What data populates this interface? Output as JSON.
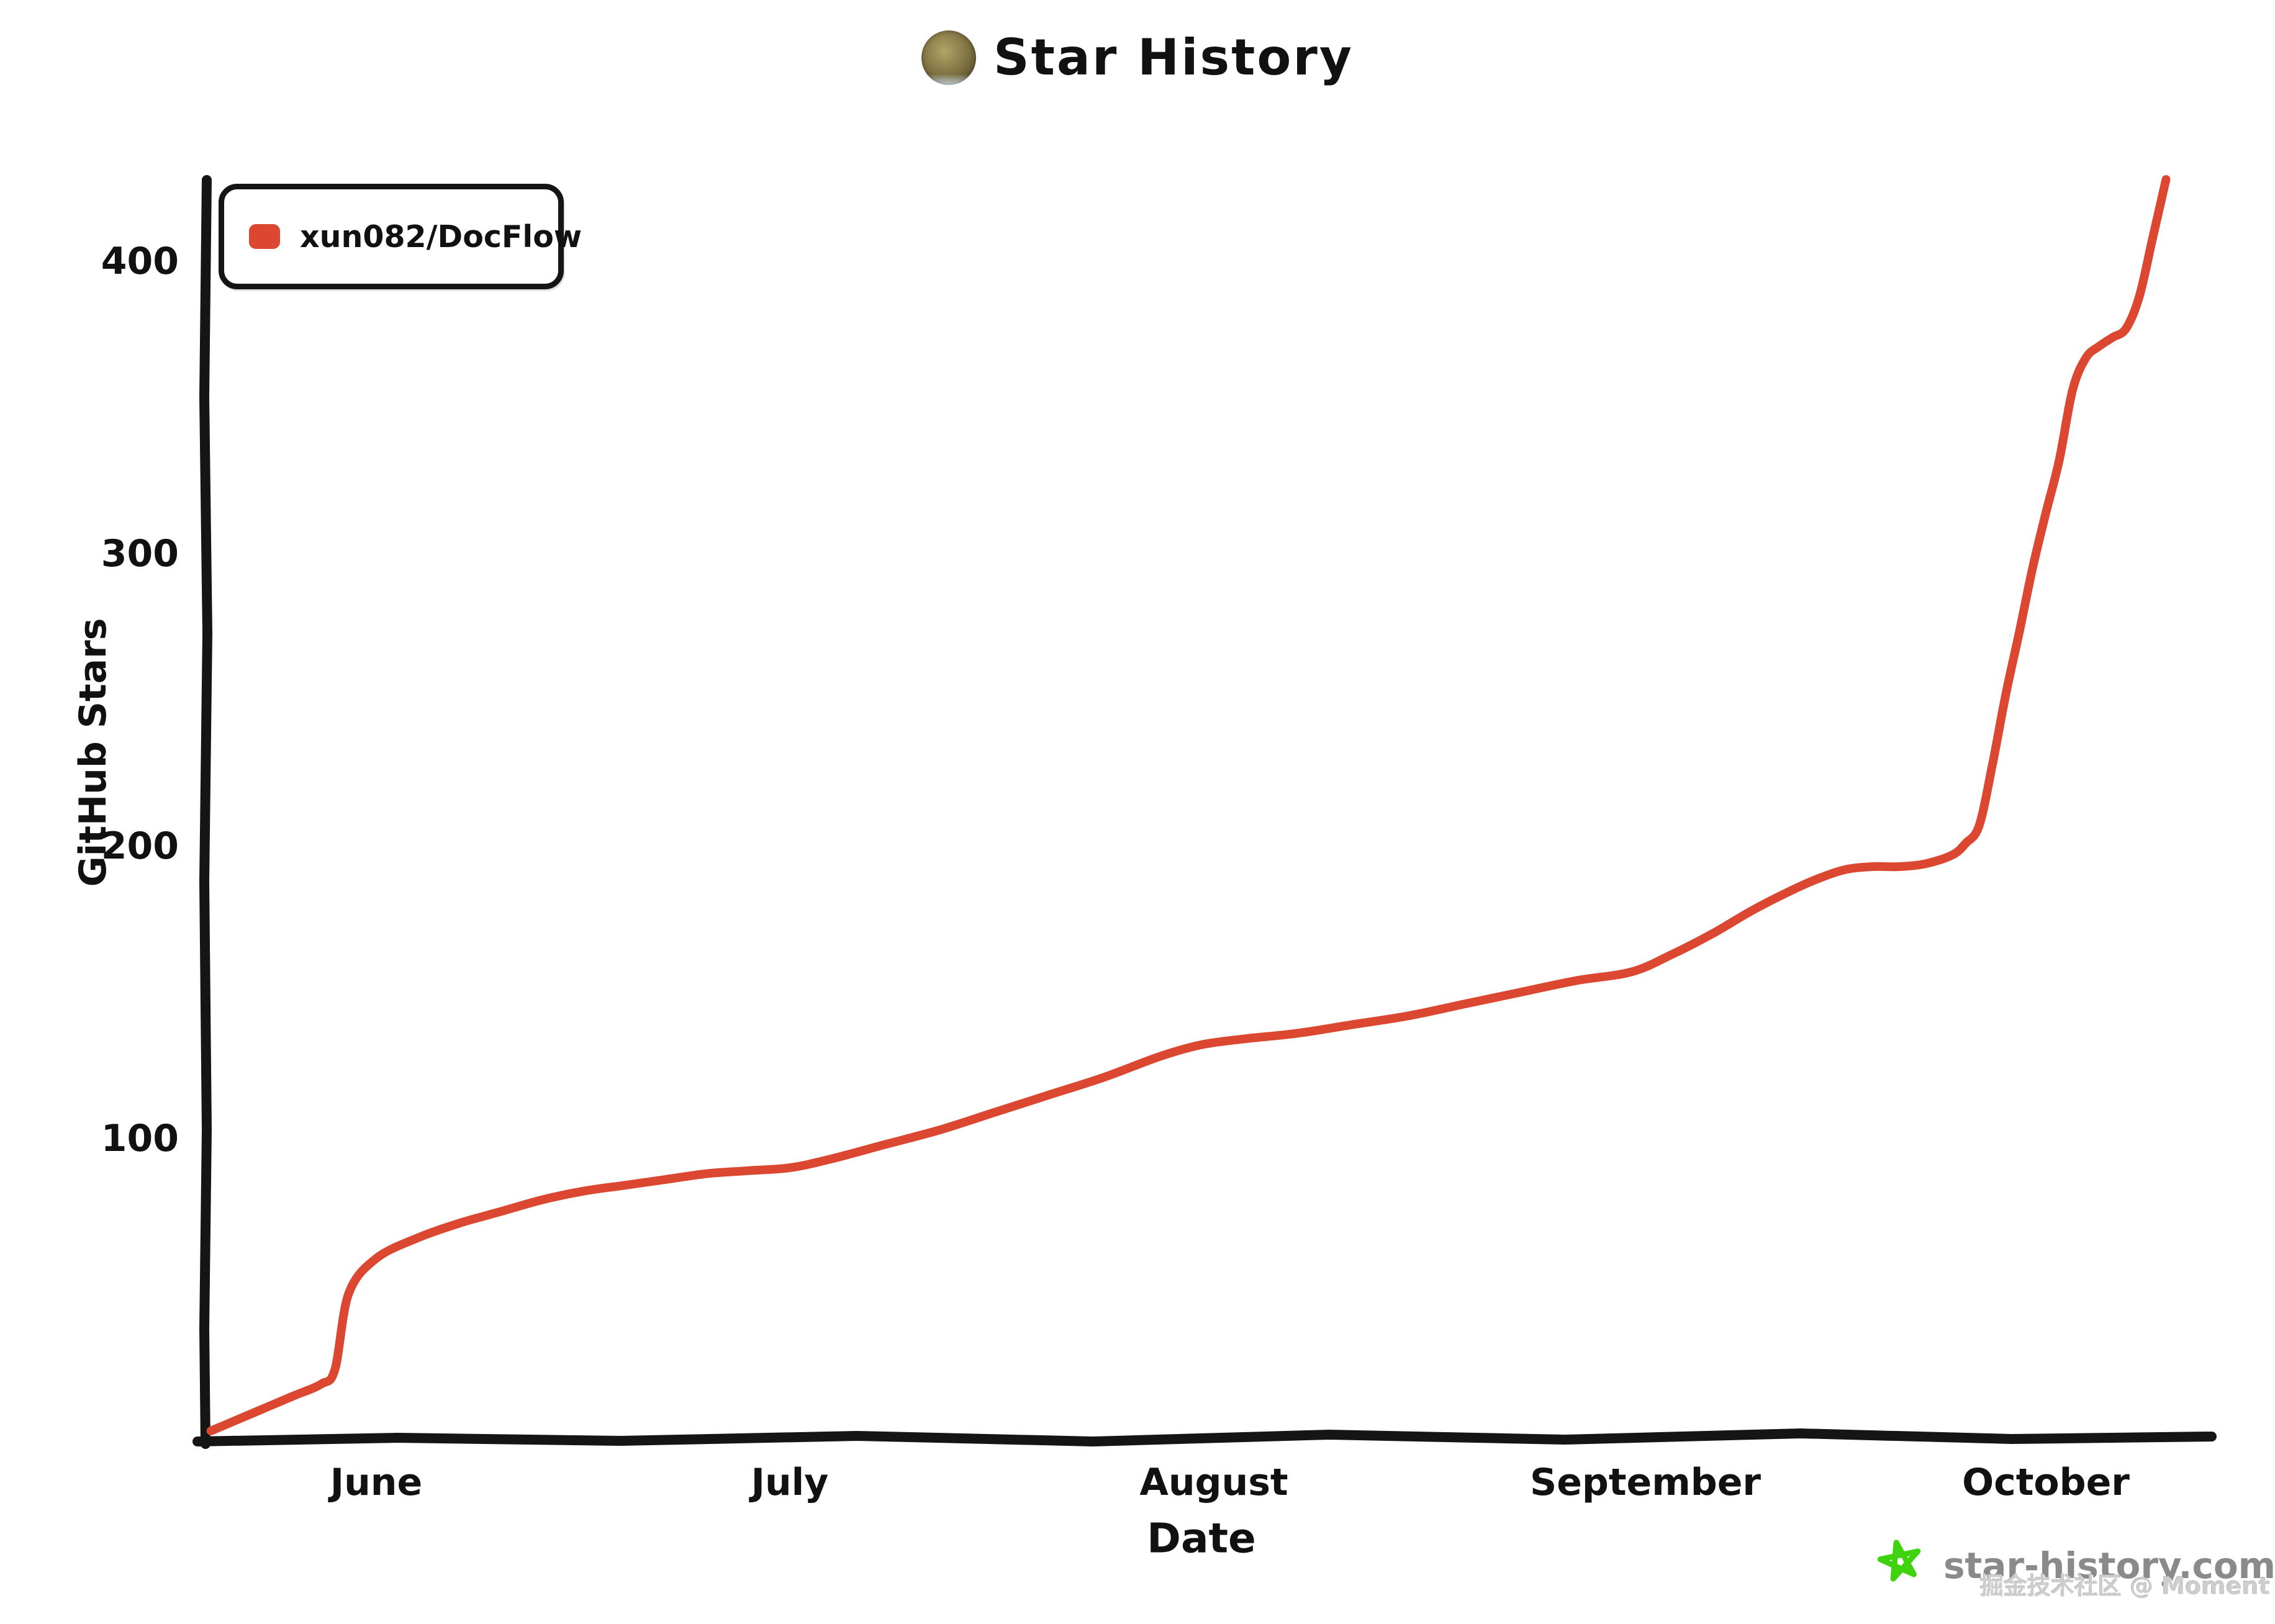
{
  "title": {
    "text": "Star History"
  },
  "legend": {
    "series_label": "xun082/DocFlow",
    "marker_color": "#DB4730"
  },
  "footer": {
    "site": "star-history.com",
    "site_color": "#8a8a8a",
    "star_color": "#3FD30F",
    "watermark": "掘金技术社区 @ Moment"
  },
  "colors": {
    "line": "#DB4730",
    "axis": "#151515",
    "text": "#111111"
  },
  "chart_data": {
    "type": "line",
    "title": "Star History",
    "xlabel": "Date",
    "ylabel": "GitHub Stars",
    "x_tick_labels": [
      "June",
      "July",
      "August",
      "September",
      "October"
    ],
    "yticks": [
      100,
      200,
      300,
      400
    ],
    "ylim": [
      0,
      430
    ],
    "grid": false,
    "legend_position": "top-left",
    "line_style": "hand-drawn",
    "series": [
      {
        "name": "xun082/DocFlow",
        "color": "#DB4730",
        "points": [
          [
            "May",
            20,
            0
          ],
          [
            "May",
            22,
            4
          ],
          [
            "May",
            24,
            8
          ],
          [
            "May",
            26,
            12
          ],
          [
            "May",
            28,
            16
          ],
          [
            "May",
            29,
            21
          ],
          [
            "May",
            30,
            47
          ],
          [
            "June",
            1,
            59
          ],
          [
            "June",
            4,
            66
          ],
          [
            "June",
            7,
            71
          ],
          [
            "June",
            10,
            75
          ],
          [
            "June",
            13,
            79
          ],
          [
            "June",
            16,
            82
          ],
          [
            "June",
            19,
            84
          ],
          [
            "June",
            22,
            86
          ],
          [
            "June",
            25,
            88
          ],
          [
            "June",
            28,
            89
          ],
          [
            "July",
            1,
            90
          ],
          [
            "July",
            4,
            93
          ],
          [
            "July",
            8,
            98
          ],
          [
            "July",
            12,
            103
          ],
          [
            "July",
            16,
            109
          ],
          [
            "July",
            20,
            115
          ],
          [
            "July",
            24,
            121
          ],
          [
            "July",
            28,
            128
          ],
          [
            "July",
            31,
            132
          ],
          [
            "August",
            3,
            134
          ],
          [
            "August",
            7,
            136
          ],
          [
            "August",
            11,
            139
          ],
          [
            "August",
            15,
            142
          ],
          [
            "August",
            19,
            146
          ],
          [
            "August",
            23,
            150
          ],
          [
            "August",
            27,
            154
          ],
          [
            "August",
            31,
            157
          ],
          [
            "September",
            3,
            163
          ],
          [
            "September",
            6,
            170
          ],
          [
            "September",
            9,
            178
          ],
          [
            "September",
            12,
            185
          ],
          [
            "September",
            14,
            189
          ],
          [
            "September",
            16,
            192
          ],
          [
            "September",
            18,
            193
          ],
          [
            "September",
            20,
            193
          ],
          [
            "September",
            22,
            194
          ],
          [
            "September",
            24,
            197
          ],
          [
            "September",
            25,
            201
          ],
          [
            "September",
            26,
            207
          ],
          [
            "September",
            27,
            228
          ],
          [
            "September",
            28,
            252
          ],
          [
            "September",
            29,
            273
          ],
          [
            "September",
            30,
            295
          ],
          [
            "October",
            1,
            314
          ],
          [
            "October",
            2,
            332
          ],
          [
            "October",
            3,
            356
          ],
          [
            "October",
            4,
            367
          ],
          [
            "October",
            5,
            371
          ],
          [
            "October",
            6,
            374
          ],
          [
            "October",
            7,
            377
          ],
          [
            "October",
            8,
            388
          ],
          [
            "October",
            9,
            408
          ],
          [
            "October",
            10,
            428
          ]
        ]
      }
    ]
  }
}
